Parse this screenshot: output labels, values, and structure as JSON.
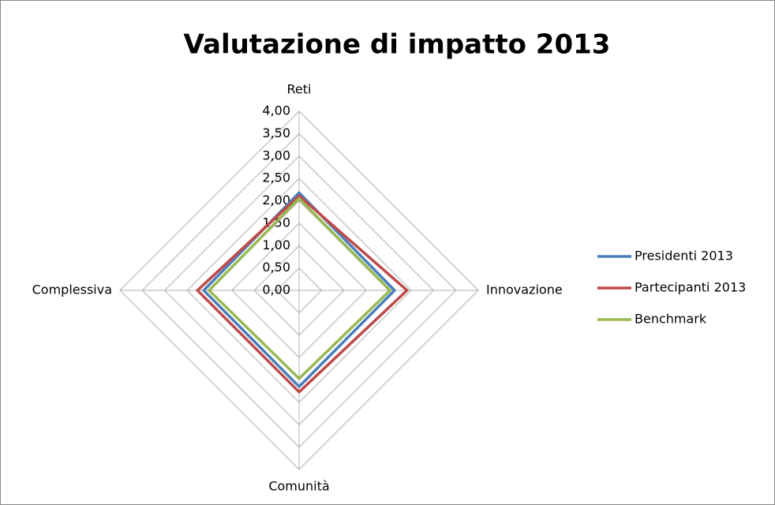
{
  "chart_data": {
    "type": "radar",
    "title": "Valutazione di impatto 2013",
    "categories": [
      "Reti",
      "Innovazione",
      "Comunità",
      "Complessiva"
    ],
    "series": [
      {
        "name": "Presidenti 2013",
        "color": "#4a7ebb",
        "values": [
          2.18,
          2.13,
          2.15,
          2.13
        ]
      },
      {
        "name": "Partecipanti 2013",
        "color": "#be4b48",
        "values": [
          2.11,
          2.41,
          2.27,
          2.27
        ]
      },
      {
        "name": "Benchmark",
        "color": "#98b954",
        "values": [
          2.05,
          2.03,
          1.97,
          2.01
        ]
      }
    ],
    "ylim": [
      0,
      4
    ],
    "yticks": [
      {
        "value": 0,
        "label": "0,00"
      },
      {
        "value": 0.5,
        "label": "0,50"
      },
      {
        "value": 1,
        "label": "1,00"
      },
      {
        "value": 1.5,
        "label": "1,50"
      },
      {
        "value": 2,
        "label": "2,00"
      },
      {
        "value": 2.5,
        "label": "2,50"
      },
      {
        "value": 3,
        "label": "3,00"
      },
      {
        "value": 3.5,
        "label": "3,50"
      },
      {
        "value": 4,
        "label": "4,00"
      }
    ],
    "grid": true,
    "legend": "right"
  }
}
